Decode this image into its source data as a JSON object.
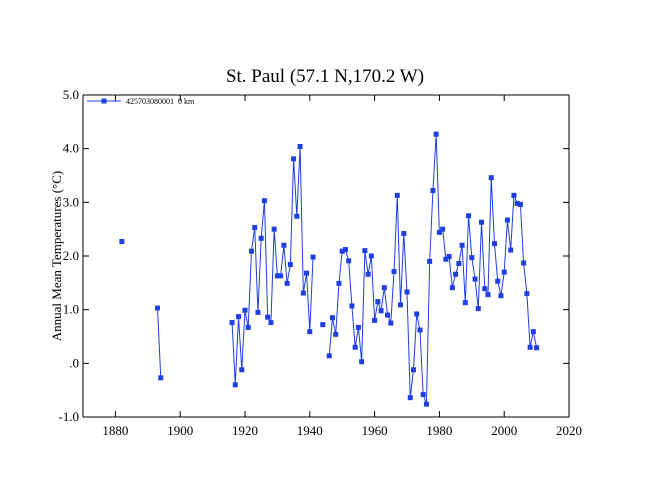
{
  "chart_data": {
    "type": "line",
    "title": "St. Paul (57.1 N,170.2 W)",
    "xlabel": "",
    "ylabel": "Annual Mean Temperatures (°C)",
    "xlim": [
      1870,
      2020
    ],
    "ylim": [
      -1.0,
      5.0
    ],
    "x_ticks": [
      1880,
      1900,
      1920,
      1940,
      1960,
      1980,
      2000,
      2020
    ],
    "x_tick_labels": [
      "1880",
      "1900",
      "1920",
      "1940",
      "1960",
      "1980",
      "2000",
      "2020"
    ],
    "y_ticks": [
      -1.0,
      0.0,
      1.0,
      2.0,
      3.0,
      4.0,
      5.0
    ],
    "y_tick_labels": [
      "-1.0",
      ".0",
      "1.0",
      "2.0",
      "3.0",
      "4.0",
      "5.0"
    ],
    "grid": false,
    "legend_position": "top-left",
    "series": [
      {
        "name": "425703080001  0 km",
        "color": "#1f3fe0",
        "marker": "square",
        "segments": [
          [
            [
              1882,
              2.27
            ]
          ],
          [
            [
              1893,
              1.03
            ],
            [
              1894,
              -0.27
            ]
          ],
          [
            [
              1916,
              0.76
            ],
            [
              1917,
              -0.4
            ],
            [
              1918,
              0.87
            ],
            [
              1919,
              -0.12
            ],
            [
              1920,
              0.99
            ],
            [
              1921,
              0.67
            ],
            [
              1922,
              2.09
            ],
            [
              1923,
              2.53
            ],
            [
              1924,
              0.95
            ],
            [
              1925,
              2.33
            ],
            [
              1926,
              3.03
            ],
            [
              1927,
              0.86
            ],
            [
              1928,
              0.76
            ],
            [
              1929,
              2.5
            ],
            [
              1930,
              1.63
            ],
            [
              1931,
              1.63
            ],
            [
              1932,
              2.2
            ],
            [
              1933,
              1.49
            ],
            [
              1934,
              1.84
            ],
            [
              1935,
              3.81
            ],
            [
              1936,
              2.74
            ],
            [
              1937,
              4.04
            ],
            [
              1938,
              1.31
            ],
            [
              1939,
              1.68
            ],
            [
              1940,
              0.59
            ],
            [
              1941,
              1.98
            ]
          ],
          [
            [
              1944,
              0.72
            ]
          ],
          [
            [
              1946,
              0.14
            ],
            [
              1947,
              0.85
            ],
            [
              1948,
              0.54
            ],
            [
              1949,
              1.49
            ],
            [
              1950,
              2.09
            ],
            [
              1951,
              2.12
            ],
            [
              1952,
              1.91
            ],
            [
              1953,
              1.07
            ],
            [
              1954,
              0.3
            ],
            [
              1955,
              0.67
            ],
            [
              1956,
              0.03
            ],
            [
              1957,
              2.1
            ],
            [
              1958,
              1.66
            ],
            [
              1959,
              2.0
            ],
            [
              1960,
              0.8
            ],
            [
              1961,
              1.15
            ],
            [
              1962,
              0.98
            ],
            [
              1963,
              1.41
            ],
            [
              1964,
              0.9
            ],
            [
              1965,
              0.75
            ],
            [
              1966,
              1.71
            ],
            [
              1967,
              3.13
            ],
            [
              1968,
              1.09
            ],
            [
              1969,
              2.42
            ],
            [
              1970,
              1.33
            ],
            [
              1971,
              -0.64
            ],
            [
              1972,
              -0.12
            ],
            [
              1973,
              0.92
            ],
            [
              1974,
              0.62
            ],
            [
              1975,
              -0.58
            ],
            [
              1976,
              -0.76
            ],
            [
              1977,
              1.9
            ],
            [
              1978,
              3.22
            ],
            [
              1979,
              4.27
            ],
            [
              1980,
              2.44
            ],
            [
              1981,
              2.5
            ],
            [
              1982,
              1.94
            ],
            [
              1983,
              1.99
            ],
            [
              1984,
              1.41
            ],
            [
              1985,
              1.66
            ],
            [
              1986,
              1.86
            ],
            [
              1987,
              2.2
            ],
            [
              1988,
              1.13
            ],
            [
              1989,
              2.75
            ],
            [
              1990,
              1.97
            ],
            [
              1991,
              1.57
            ],
            [
              1992,
              1.02
            ],
            [
              1993,
              2.63
            ],
            [
              1994,
              1.39
            ],
            [
              1995,
              1.28
            ],
            [
              1996,
              3.46
            ],
            [
              1997,
              2.23
            ],
            [
              1998,
              1.53
            ],
            [
              1999,
              1.26
            ],
            [
              2000,
              1.7
            ],
            [
              2001,
              2.67
            ],
            [
              2002,
              2.11
            ],
            [
              2003,
              3.13
            ],
            [
              2004,
              2.98
            ],
            [
              2005,
              2.96
            ],
            [
              2006,
              1.87
            ],
            [
              2007,
              1.3
            ],
            [
              2008,
              0.3
            ],
            [
              2009,
              0.59
            ],
            [
              2010,
              0.29
            ]
          ]
        ]
      }
    ]
  }
}
